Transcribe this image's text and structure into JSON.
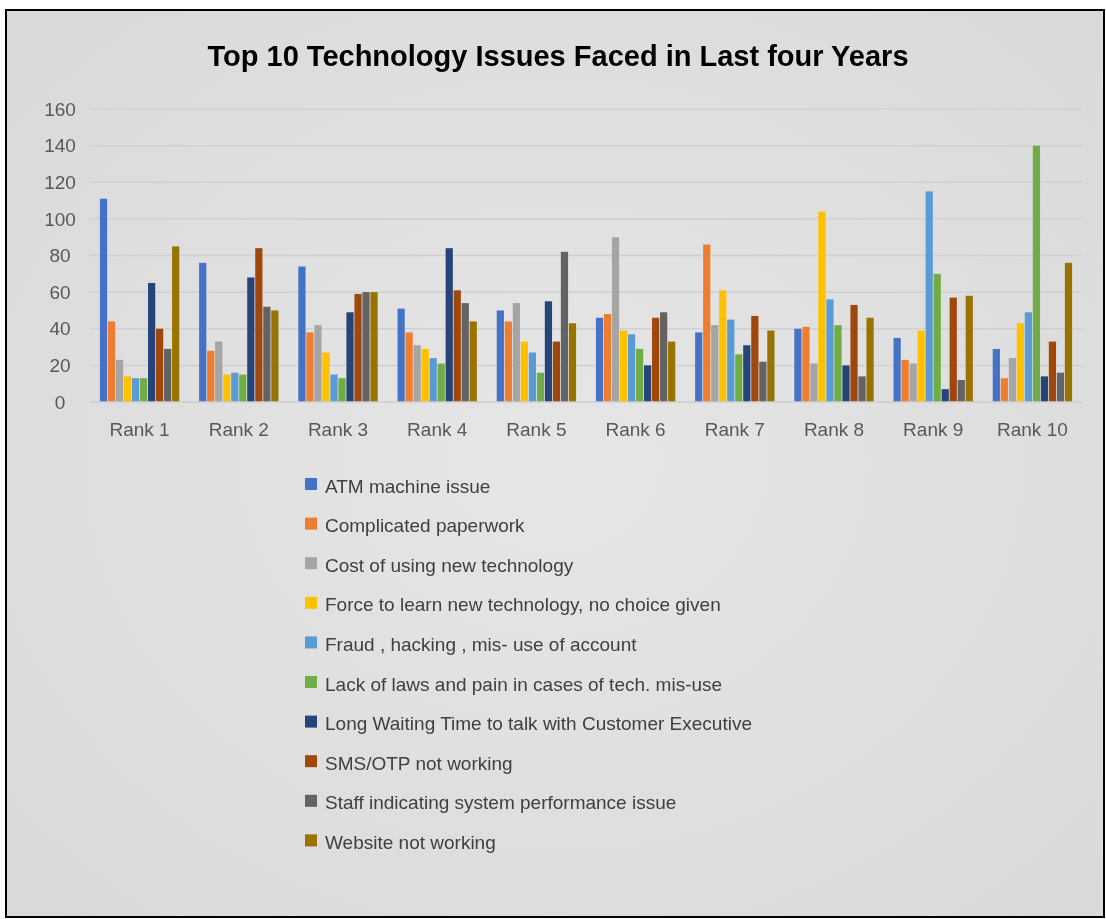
{
  "chart_data": {
    "type": "bar",
    "title": "Top 10 Technology Issues Faced in Last four Years",
    "categories": [
      "Rank 1",
      "Rank 2",
      "Rank 3",
      "Rank 4",
      "Rank 5",
      "Rank 6",
      "Rank 7",
      "Rank 8",
      "Rank 9",
      "Rank 10"
    ],
    "series": [
      {
        "name": "ATM machine issue",
        "color": "#4472c4",
        "values": [
          111,
          76,
          74,
          51,
          50,
          46,
          38,
          40,
          35,
          29
        ]
      },
      {
        "name": "Complicated paperwork",
        "color": "#ed7d31",
        "values": [
          44,
          28,
          38,
          38,
          44,
          48,
          86,
          41,
          23,
          13
        ]
      },
      {
        "name": "Cost of using new technology",
        "color": "#a5a5a5",
        "values": [
          23,
          33,
          42,
          31,
          54,
          90,
          42,
          21,
          21,
          24
        ]
      },
      {
        "name": "Force to learn new technology, no choice given",
        "color": "#ffc000",
        "values": [
          14,
          15,
          27,
          29,
          33,
          39,
          61,
          104,
          39,
          43
        ]
      },
      {
        "name": "Fraud , hacking , mis- use of account",
        "color": "#5b9bd5",
        "values": [
          13,
          16,
          15,
          24,
          27,
          37,
          45,
          56,
          115,
          49
        ]
      },
      {
        "name": "Lack of laws and pain in cases of tech. mis-use",
        "color": "#70ad47",
        "values": [
          13,
          15,
          13,
          21,
          16,
          29,
          26,
          42,
          70,
          140
        ]
      },
      {
        "name": "Long Waiting Time to talk with Customer Executive",
        "color": "#264478",
        "values": [
          65,
          68,
          49,
          84,
          55,
          20,
          31,
          20,
          7,
          14
        ]
      },
      {
        "name": "SMS/OTP not working",
        "color": "#9e480e",
        "values": [
          40,
          84,
          59,
          61,
          33,
          46,
          47,
          53,
          57,
          33
        ]
      },
      {
        "name": "Staff indicating system performance issue",
        "color": "#636363",
        "values": [
          29,
          52,
          60,
          54,
          82,
          49,
          22,
          14,
          12,
          16
        ]
      },
      {
        "name": "Website not working",
        "color": "#997300",
        "values": [
          85,
          50,
          60,
          44,
          43,
          33,
          39,
          46,
          58,
          76
        ]
      }
    ],
    "ylim": [
      0,
      160
    ],
    "yticks": [
      0,
      20,
      40,
      60,
      80,
      100,
      120,
      140,
      160
    ],
    "grid": "y",
    "legend": "bottom"
  }
}
